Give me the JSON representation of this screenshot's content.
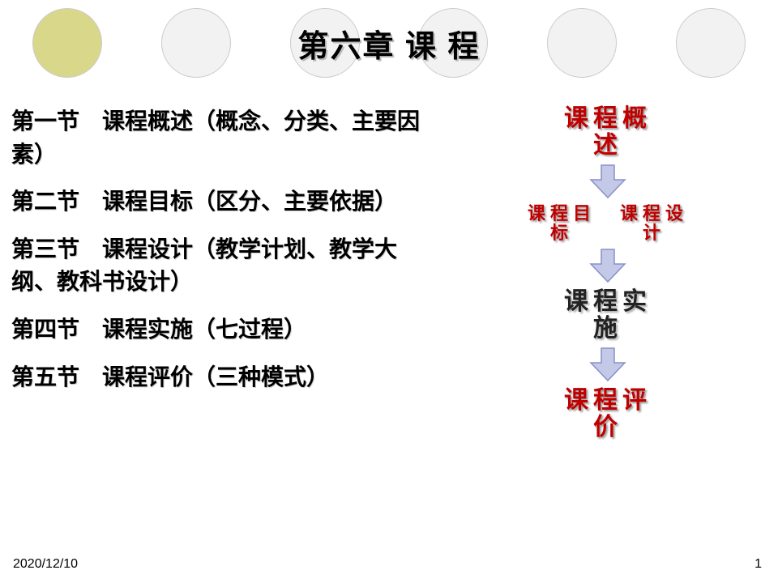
{
  "title": "第六章  课  程",
  "circles": {
    "count": 6,
    "colors": [
      "#d9d78a",
      "#f2f2f2",
      "#f2f2f2",
      "#f2f2f2",
      "#f2f2f2",
      "#f2f2f2"
    ],
    "border": "#cccccc"
  },
  "sections": [
    "第一节　课程概述（概念、分类、主要因素）",
    "第二节　课程目标（区分、主要依据）",
    "第三节　课程设计（教学计划、教学大纲、教科书设计）",
    "第四节　课程实施（七过程）",
    "第五节　课程评价（三种模式）"
  ],
  "flow": {
    "node1": {
      "line1": "课程概",
      "line2": "述",
      "color": "red",
      "fontsize": 30
    },
    "split": {
      "left": {
        "line1": "课程目",
        "line2": "标",
        "color": "red",
        "fontsize": 22
      },
      "right": {
        "line1": "课程设",
        "line2": "计",
        "color": "red",
        "fontsize": 22
      }
    },
    "node3": {
      "line1": "课程实",
      "line2": "施",
      "color": "black",
      "fontsize": 30
    },
    "node4": {
      "line1": "课程评",
      "line2": "价",
      "color": "red",
      "fontsize": 30
    },
    "arrow": {
      "fill": "#c5c9e8",
      "stroke": "#8890c8",
      "width": 50,
      "height": 44
    }
  },
  "footer": {
    "date": "2020/12/10",
    "page": "1"
  },
  "styling": {
    "background": "#ffffff",
    "title_fontsize": 38,
    "section_fontsize": 28,
    "title_shadow": "#bbbbbb",
    "section_shadow": "#cccccc"
  }
}
